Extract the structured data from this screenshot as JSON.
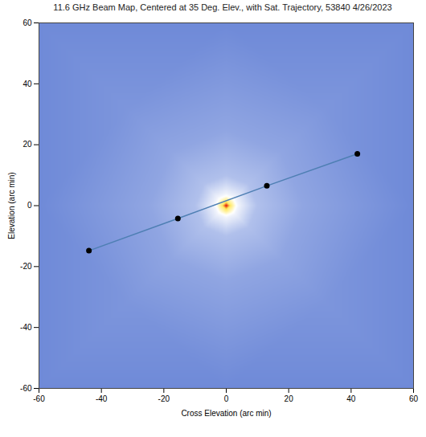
{
  "chart_data": {
    "type": "heatmap",
    "title": "11.6 GHz Beam Map, Centered at 35 Deg. Elev., with Sat. Trajectory,  53840 4/26/2023",
    "xlabel": "Cross Elevation (arc min)",
    "ylabel": "Elevation (arc min)",
    "xlim": [
      -60,
      60
    ],
    "ylim": [
      -60,
      60
    ],
    "xticks": [
      -60,
      -40,
      -20,
      0,
      20,
      40,
      60
    ],
    "yticks": [
      -60,
      -40,
      -20,
      0,
      20,
      40,
      60
    ],
    "grid": false,
    "beam_map": {
      "x": [
        0,
        1.5,
        -1.5,
        0,
        0,
        4,
        -4,
        0,
        0,
        2.8,
        -2.8,
        2.8,
        -2.8,
        10,
        -10,
        0,
        0,
        7.1,
        -7.1,
        7.1,
        -7.1,
        25,
        -25,
        0,
        0,
        17.7,
        -17.7,
        17.7,
        -17.7,
        45,
        -45,
        0,
        0,
        31.8,
        -31.8,
        31.8,
        -31.8,
        60,
        -60,
        0,
        0,
        60,
        -60,
        60,
        -60
      ],
      "y": [
        0,
        0,
        0,
        1.5,
        -1.5,
        0,
        0,
        4,
        -4,
        2.8,
        2.8,
        -2.8,
        -2.8,
        0,
        0,
        10,
        -10,
        7.1,
        7.1,
        -7.1,
        -7.1,
        0,
        0,
        25,
        -25,
        17.7,
        17.7,
        -17.7,
        -17.7,
        0,
        0,
        45,
        -45,
        31.8,
        31.8,
        -31.8,
        -31.8,
        0,
        0,
        60,
        -60,
        60,
        60,
        -60,
        -60
      ],
      "values": [
        0,
        -6,
        -6,
        -6,
        -6,
        -15,
        -15,
        -15,
        -15,
        -15,
        -15,
        -15,
        -15,
        -27,
        -27,
        -27,
        -27,
        -27,
        -27,
        -27,
        -27,
        -34,
        -34,
        -34,
        -34,
        -34,
        -34,
        -34,
        -34,
        -38,
        -38,
        -38,
        -38,
        -38,
        -38,
        -38,
        -38,
        -41,
        -41,
        -41,
        -41,
        -41,
        -41,
        -41,
        -41
      ]
    },
    "trajectory": {
      "x": [
        -44,
        -15.5,
        13,
        42
      ],
      "y": [
        -14.8,
        -4.2,
        6.5,
        17
      ],
      "color": "#4e7fb3",
      "marker": "circle"
    }
  }
}
